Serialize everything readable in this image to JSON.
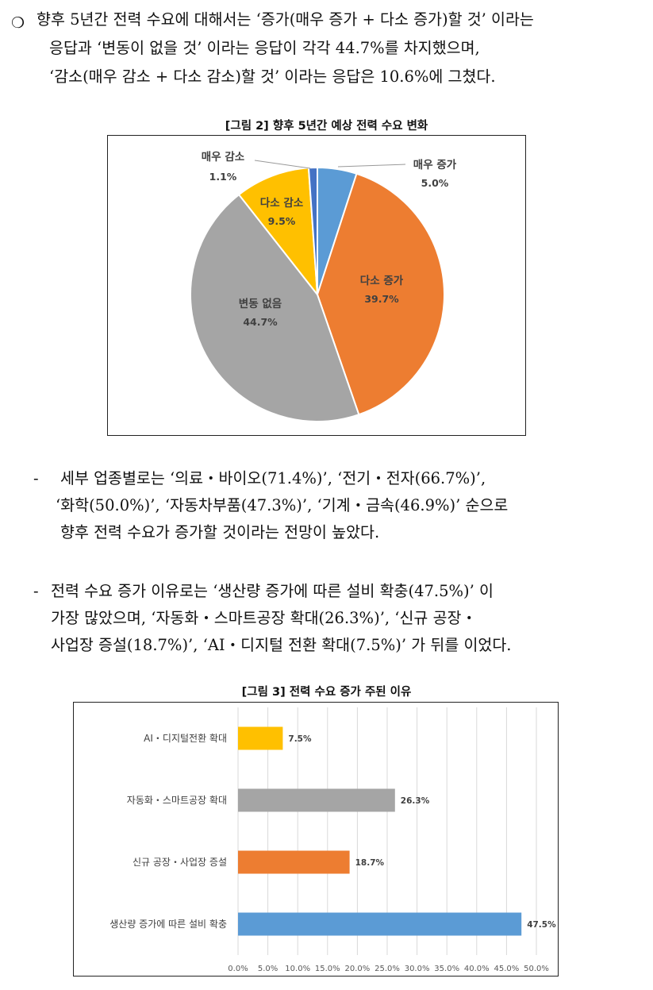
{
  "intro": {
    "bullet": "❍",
    "lines": [
      "향후 5년간 전력 수요에 대해서는 ‘증가(매우 증가 + 다소 증가)할 것’ 이라는",
      "응답과 ‘변동이 없을 것’ 이라는 응답이 각각 44.7%를 차지했으며,",
      "‘감소(매우 감소 + 다소 감소)할 것’ 이라는 응답은 10.6%에 그쳤다."
    ]
  },
  "figure2": {
    "caption": "[그림 2] 향후 5년간 예상 전력 수요 변화"
  },
  "sub1": {
    "dash": "-",
    "lines": [
      "세부 업종별로는 ‘의료・바이오(71.4%)’, ‘전기・전자(66.7%)’,",
      "‘화학(50.0%)’, ‘자동차부품(47.3%)’, ‘기계・금속(46.9%)’ 순으로",
      "향후 전력 수요가 증가할 것이라는 전망이 높았다."
    ]
  },
  "sub2": {
    "dash": "-",
    "lines": [
      "전력 수요 증가 이유로는 ‘생산량 증가에 따른 설비 확충(47.5%)’ 이",
      "가장 많았으며, ‘자동화・스마트공장 확대(26.3%)’, ‘신규 공장・",
      "사업장 증설(18.7%)’, ‘AI・디지털 전환 확대(7.5%)’ 가 뒤를 이었다."
    ]
  },
  "figure3": {
    "caption": "[그림 3] 전력 수요 증가 주된 이유"
  },
  "chart_data": [
    {
      "type": "pie",
      "categories": [
        "매우 증가",
        "다소 증가",
        "변동 없음",
        "다소 감소",
        "매우 감소"
      ],
      "values": [
        5.0,
        39.7,
        44.7,
        9.5,
        1.1
      ],
      "value_labels": [
        "5.0%",
        "39.7%",
        "44.7%",
        "9.5%",
        "1.1%"
      ],
      "colors": [
        "#5b9bd5",
        "#ed7d31",
        "#a5a5a5",
        "#ffc000",
        "#4472c4"
      ],
      "start": "12 o'clock, clockwise"
    },
    {
      "type": "bar",
      "orientation": "horizontal",
      "categories": [
        "AI・디지털전환 확대",
        "자동화・스마트공장 확대",
        "신규 공장・사업장 증설",
        "생산량 증가에 따른 설비 확충"
      ],
      "values": [
        7.5,
        26.3,
        18.7,
        47.5
      ],
      "value_labels": [
        "7.5%",
        "26.3%",
        "18.7%",
        "47.5%"
      ],
      "colors": [
        "#ffc000",
        "#a5a5a5",
        "#ed7d31",
        "#5b9bd5"
      ],
      "x_ticks": [
        "0.0%",
        "5.0%",
        "10.0%",
        "15.0%",
        "20.0%",
        "25.0%",
        "30.0%",
        "35.0%",
        "40.0%",
        "45.0%",
        "50.0%"
      ],
      "xlim": [
        0,
        50
      ],
      "grid": true
    }
  ]
}
